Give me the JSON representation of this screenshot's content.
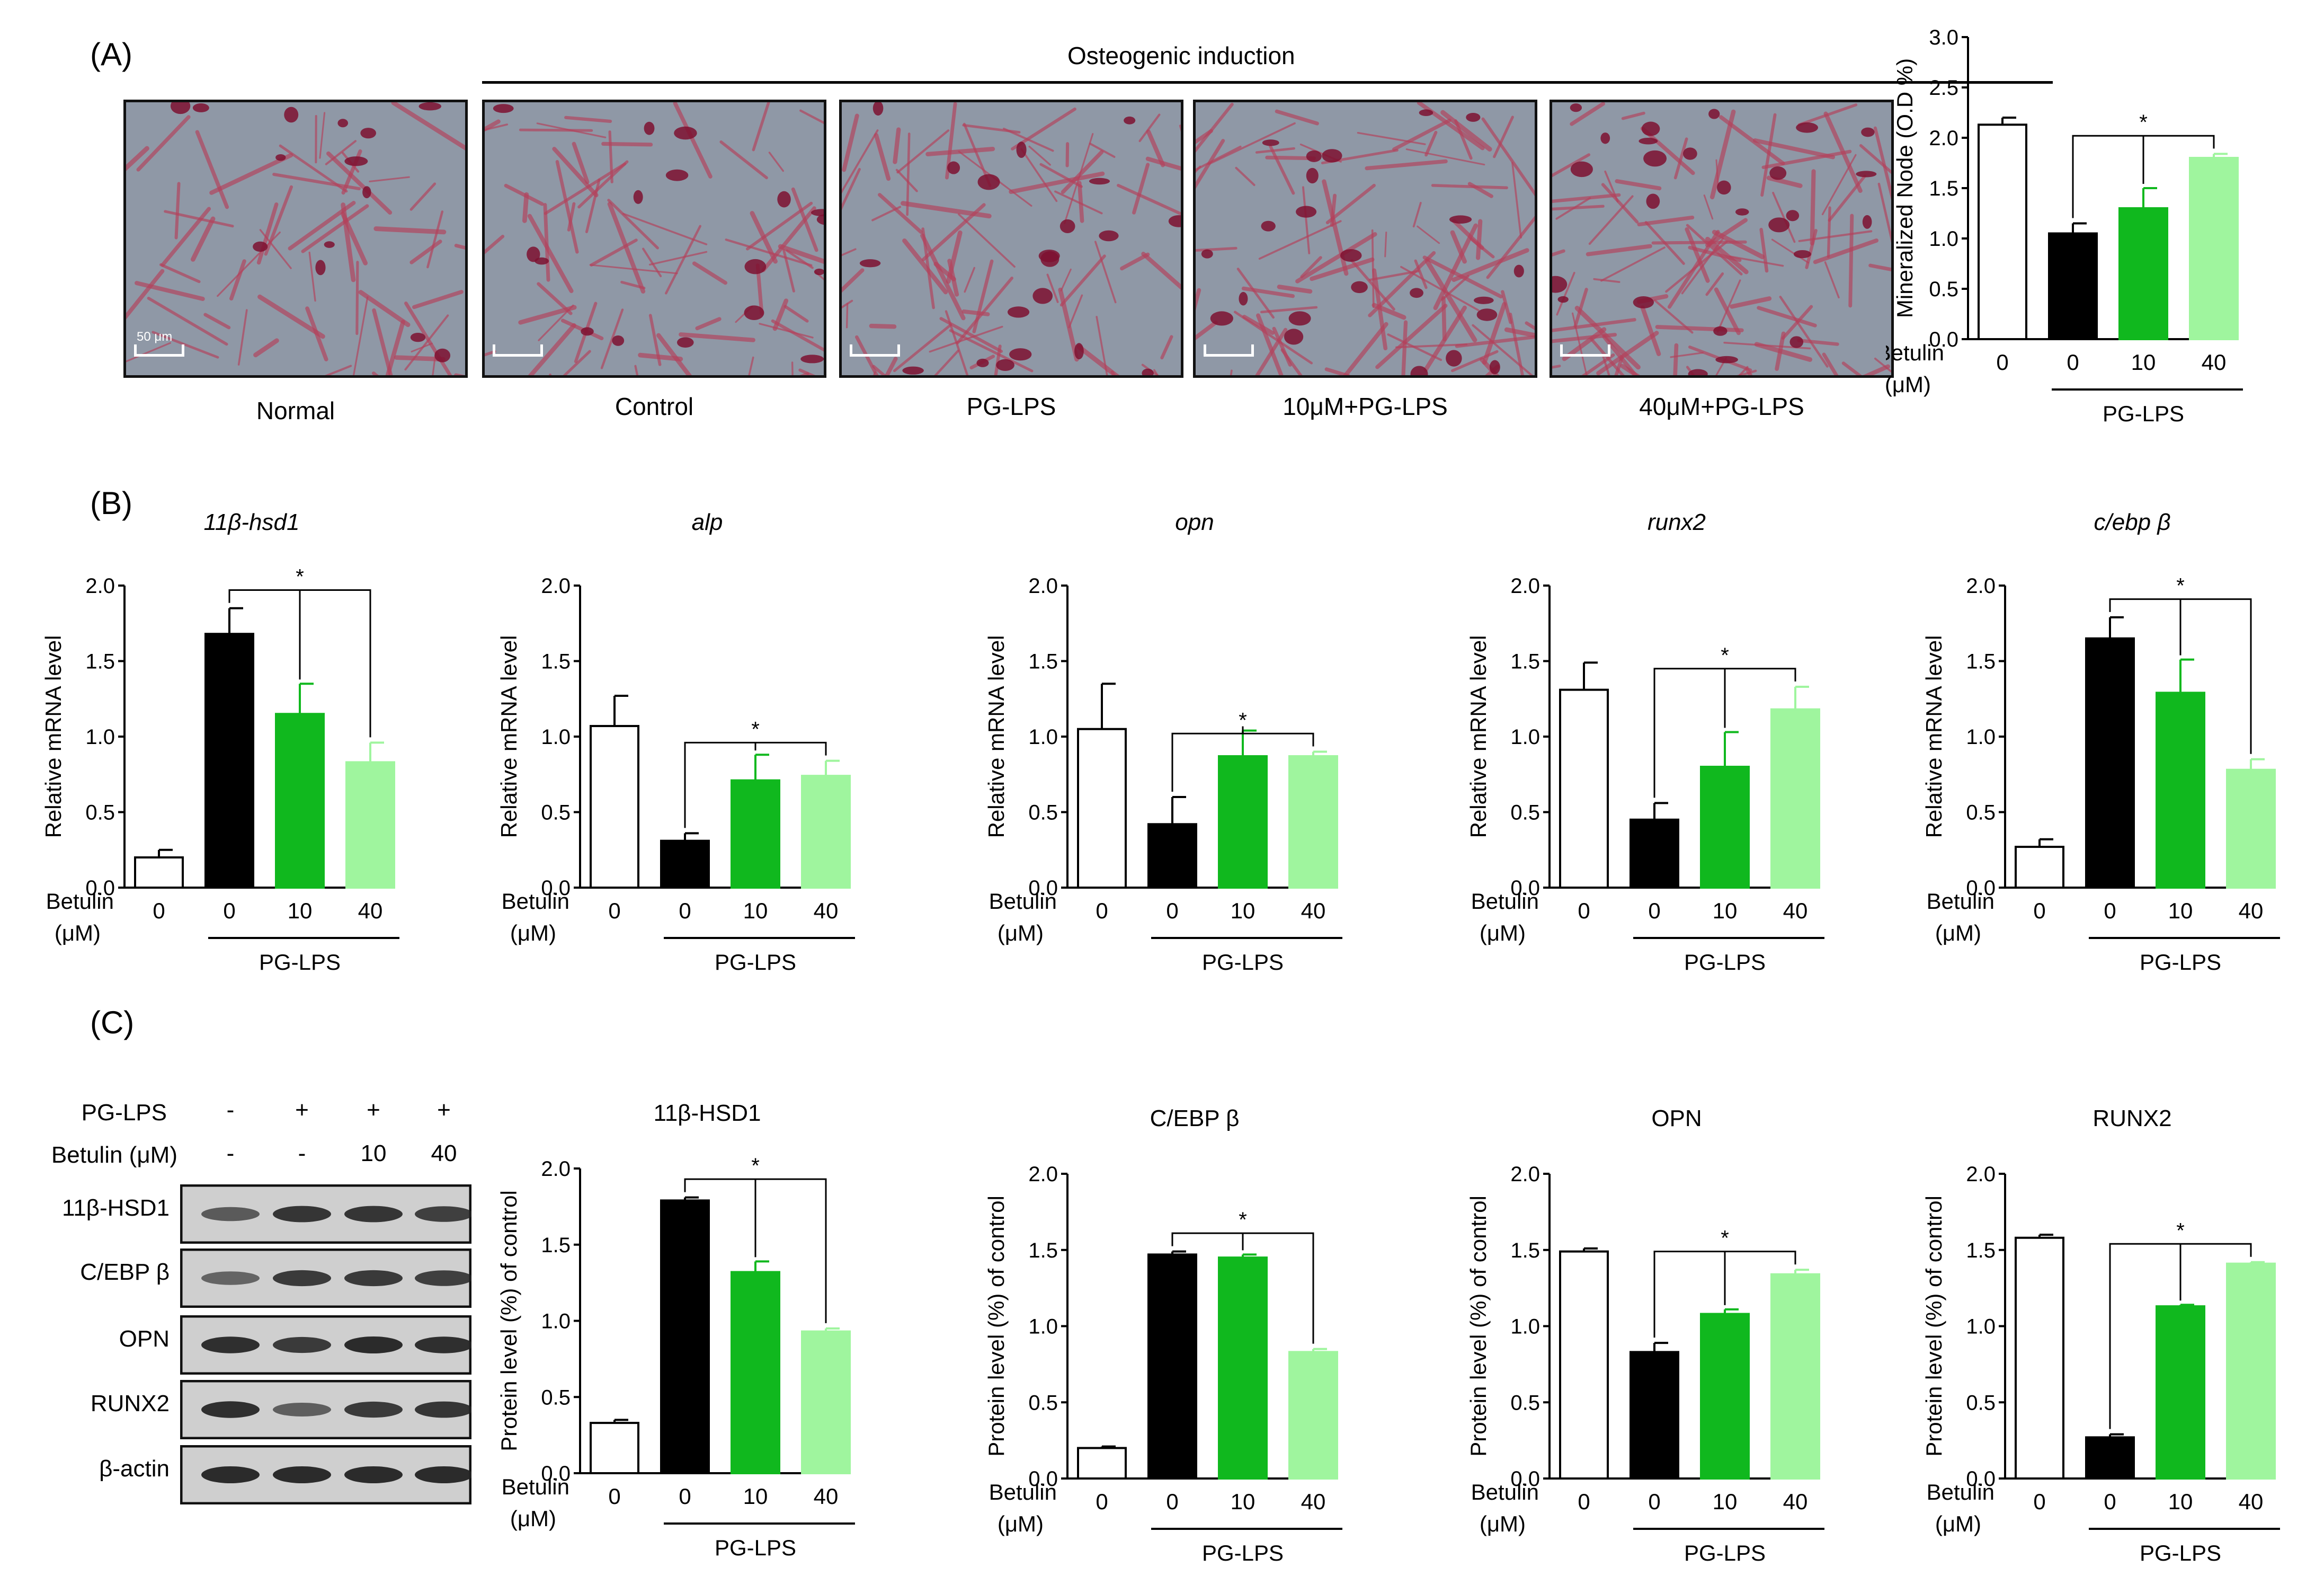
{
  "panels": {
    "A": "(A)",
    "B": "(B)",
    "C": "(C)"
  },
  "osteo": {
    "header": "Osteogenic induction"
  },
  "micro": {
    "captions": [
      "Normal",
      "Control",
      "PG-LPS",
      "10μM+PG-LPS",
      "40μM+PG-LPS"
    ],
    "scale_label": "50 μm"
  },
  "colors": {
    "normal": "#ffffff",
    "control": "#000000",
    "b10": "#10b81e",
    "b40": "#9ff59e",
    "stain": "#b5405a",
    "background": "#8f98a6"
  },
  "axis_common": {
    "betulin": "Betulin",
    "unit": "(μM)",
    "group": "PG-LPS",
    "ticks": [
      "0",
      "0",
      "10",
      "40"
    ],
    "mrna_ylabel": "Relative mRNA level",
    "protein_ylabel": "Protein level (%) of control",
    "node_ylabel": "Mineralized Node (O.D %)"
  },
  "blot": {
    "row_labels": [
      "11β-HSD1",
      "C/EBP β",
      "OPN",
      "RUNX2",
      "β-actin"
    ],
    "pg_lps_label": "PG-LPS",
    "pg_lps_marks": [
      "-",
      "+",
      "+",
      "+"
    ],
    "betulin_label": "Betulin  (μM)",
    "betulin_marks": [
      "-",
      "-",
      "10",
      "40"
    ]
  },
  "chart_data": [
    {
      "id": "node",
      "type": "bar",
      "title": "",
      "title_italic": false,
      "ylabel": "Mineralized Node (O.D %)",
      "categories": [
        "0",
        "0",
        "10",
        "40"
      ],
      "values": [
        2.13,
        1.05,
        1.3,
        1.8
      ],
      "errors": [
        0.07,
        0.1,
        0.2,
        0.04
      ],
      "ylim": [
        0,
        3.0
      ],
      "yticks": [
        "0.0",
        "0.5",
        "1.0",
        "1.5",
        "2.0",
        "2.5",
        "3.0"
      ],
      "sig": "*"
    },
    {
      "id": "hsd1_mrna",
      "type": "bar",
      "title": "11β-hsd1",
      "title_italic": true,
      "ylabel": "Relative mRNA level",
      "categories": [
        "0",
        "0",
        "10",
        "40"
      ],
      "values": [
        0.2,
        1.68,
        1.15,
        0.83
      ],
      "errors": [
        0.05,
        0.17,
        0.2,
        0.13
      ],
      "ylim": [
        0,
        2.0
      ],
      "yticks": [
        "0.0",
        "0.5",
        "1.0",
        "1.5",
        "2.0"
      ],
      "sig": "*"
    },
    {
      "id": "alp_mrna",
      "type": "bar",
      "title": "alp",
      "title_italic": true,
      "ylabel": "Relative mRNA level",
      "categories": [
        "0",
        "0",
        "10",
        "40"
      ],
      "values": [
        1.07,
        0.31,
        0.71,
        0.74
      ],
      "errors": [
        0.2,
        0.05,
        0.17,
        0.1
      ],
      "ylim": [
        0,
        2.0
      ],
      "yticks": [
        "0.0",
        "0.5",
        "1.0",
        "1.5",
        "2.0"
      ],
      "sig": "*"
    },
    {
      "id": "opn_mrna",
      "type": "bar",
      "title": "opn",
      "title_italic": true,
      "ylabel": "Relative mRNA level",
      "categories": [
        "0",
        "0",
        "10",
        "40"
      ],
      "values": [
        1.05,
        0.42,
        0.87,
        0.87
      ],
      "errors": [
        0.3,
        0.18,
        0.17,
        0.03
      ],
      "ylim": [
        0,
        2.0
      ],
      "yticks": [
        "0.0",
        "0.5",
        "1.0",
        "1.5",
        "2.0"
      ],
      "sig": "*"
    },
    {
      "id": "runx2_mrna",
      "type": "bar",
      "title": "runx2",
      "title_italic": true,
      "ylabel": "Relative mRNA level",
      "categories": [
        "0",
        "0",
        "10",
        "40"
      ],
      "values": [
        1.31,
        0.45,
        0.8,
        1.18
      ],
      "errors": [
        0.18,
        0.11,
        0.23,
        0.15
      ],
      "ylim": [
        0,
        2.0
      ],
      "yticks": [
        "0.0",
        "0.5",
        "1.0",
        "1.5",
        "2.0"
      ],
      "sig": "*"
    },
    {
      "id": "cebpb_mrna",
      "type": "bar",
      "title": "c/ebp β",
      "title_italic": true,
      "ylabel": "Relative mRNA level",
      "categories": [
        "0",
        "0",
        "10",
        "40"
      ],
      "values": [
        0.27,
        1.65,
        1.29,
        0.78
      ],
      "errors": [
        0.05,
        0.14,
        0.22,
        0.07
      ],
      "ylim": [
        0,
        2.0
      ],
      "yticks": [
        "0.0",
        "0.5",
        "1.0",
        "1.5",
        "2.0"
      ],
      "sig": "*"
    },
    {
      "id": "hsd1_protein",
      "type": "bar",
      "title": "11β-HSD1",
      "title_italic": false,
      "ylabel": "Protein level (%) of control",
      "categories": [
        "0",
        "0",
        "10",
        "40"
      ],
      "values": [
        0.33,
        1.79,
        1.32,
        0.93
      ],
      "errors": [
        0.02,
        0.02,
        0.07,
        0.02
      ],
      "ylim": [
        0,
        2.0
      ],
      "yticks": [
        "0.0",
        "0.5",
        "1.0",
        "1.5",
        "2.0"
      ],
      "sig": "*"
    },
    {
      "id": "cebpb_protein",
      "type": "bar",
      "title": "C/EBP β",
      "title_italic": false,
      "ylabel": "Protein level (%) of control",
      "categories": [
        "0",
        "0",
        "10",
        "40"
      ],
      "values": [
        0.2,
        1.47,
        1.45,
        0.83
      ],
      "errors": [
        0.01,
        0.02,
        0.02,
        0.02
      ],
      "ylim": [
        0,
        2.0
      ],
      "yticks": [
        "0.0",
        "0.5",
        "1.0",
        "1.5",
        "2.0"
      ],
      "sig": "*"
    },
    {
      "id": "opn_protein",
      "type": "bar",
      "title": "OPN",
      "title_italic": false,
      "ylabel": "Protein level (%) of control",
      "categories": [
        "0",
        "0",
        "10",
        "40"
      ],
      "values": [
        1.49,
        0.83,
        1.08,
        1.34
      ],
      "errors": [
        0.02,
        0.06,
        0.03,
        0.03
      ],
      "ylim": [
        0,
        2.0
      ],
      "yticks": [
        "0.0",
        "0.5",
        "1.0",
        "1.5",
        "2.0"
      ],
      "sig": "*"
    },
    {
      "id": "runx2_protein",
      "type": "bar",
      "title": "RUNX2",
      "title_italic": false,
      "ylabel": "Protein level (%) of control",
      "categories": [
        "0",
        "0",
        "10",
        "40"
      ],
      "values": [
        1.58,
        0.27,
        1.13,
        1.41
      ],
      "errors": [
        0.02,
        0.02,
        0.01,
        0.01
      ],
      "ylim": [
        0,
        2.0
      ],
      "yticks": [
        "0.0",
        "0.5",
        "1.0",
        "1.5",
        "2.0"
      ],
      "sig": "*"
    }
  ]
}
